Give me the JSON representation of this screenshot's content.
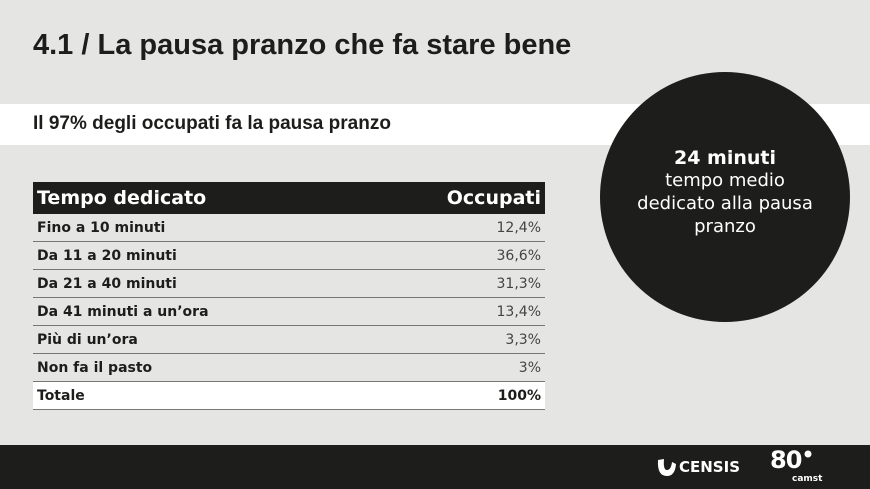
{
  "title": "4.1 / La pausa pranzo che fa stare bene",
  "subtitle": "Il 97% degli occupati fa la pausa pranzo",
  "highlight": {
    "value": "24 minuti",
    "description": "tempo medio dedicato alla pausa pranzo"
  },
  "table": {
    "headers": [
      "Tempo dedicato",
      "Occupati"
    ],
    "rows": [
      [
        "Fino a 10 minuti",
        "12,4%"
      ],
      [
        "Da 11 a 20 minuti",
        "36,6%"
      ],
      [
        "Da 21 a 40 minuti",
        "31,3%"
      ],
      [
        "Da 41 minuti a un’ora",
        "13,4%"
      ],
      [
        "Più di un’ora",
        "3,3%"
      ],
      [
        "Non fa il pasto",
        "3%"
      ]
    ],
    "total": [
      "Totale",
      "100%"
    ]
  },
  "footer": {
    "logo1": "CENSIS",
    "logo2_number": "80",
    "logo2_word": "camst"
  },
  "colors": {
    "background": "#e5e5e4",
    "dark": "#1d1d1b",
    "band": "#ffffff"
  }
}
